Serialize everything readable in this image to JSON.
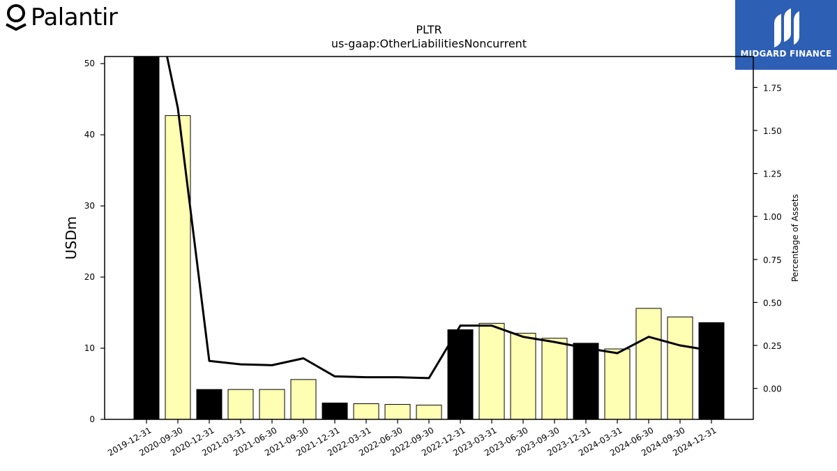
{
  "brand": {
    "left_logo_text": "Palantir",
    "right_logo_text": "MIDGARD FINANCE",
    "right_logo_bg": "#2d5fb4"
  },
  "chart_data": {
    "type": "bar",
    "title": "PLTR",
    "subtitle": "us-gaap:OtherLiabilitiesNoncurrent",
    "ylabel": "USDm",
    "y2label": "Percentage of Assets",
    "categories": [
      "2019-12-31",
      "2020-09-30",
      "2020-12-31",
      "2021-03-31",
      "2021-06-30",
      "2021-09-30",
      "2021-12-31",
      "2022-03-31",
      "2022-06-30",
      "2022-09-30",
      "2022-12-31",
      "2023-03-31",
      "2023-06-30",
      "2023-09-30",
      "2023-12-31",
      "2024-03-31",
      "2024-06-30",
      "2024-09-30",
      "2024-12-31"
    ],
    "series": [
      {
        "kind": "bar",
        "values": [
          51,
          42.7,
          4.2,
          4.2,
          4.2,
          5.6,
          2.3,
          2.2,
          2.1,
          2.0,
          12.6,
          13.5,
          12.1,
          11.4,
          10.7,
          9.9,
          15.6,
          14.4,
          13.6
        ],
        "fiscal_year_end": [
          true,
          false,
          true,
          false,
          false,
          false,
          true,
          false,
          false,
          false,
          true,
          false,
          false,
          false,
          true,
          false,
          false,
          false,
          true
        ]
      },
      {
        "kind": "line",
        "axis": "right",
        "values": [
          2.5,
          1.63,
          0.16,
          0.14,
          0.135,
          0.175,
          0.07,
          0.065,
          0.065,
          0.06,
          0.365,
          0.365,
          0.3,
          0.27,
          0.235,
          0.205,
          0.3,
          0.25,
          0.22
        ]
      }
    ],
    "ylim": [
      0,
      51
    ],
    "yticks": [
      0,
      10,
      20,
      30,
      40,
      50
    ],
    "y2lim": [
      -0.18,
      1.93
    ],
    "y2ticks": [
      "0.00",
      "0.25",
      "0.50",
      "0.75",
      "1.00",
      "1.25",
      "1.50",
      "1.75"
    ],
    "colors": {
      "fiscal_year_end_bar": "#000000",
      "quarter_bar": "#ffffb3",
      "line": "#000000"
    }
  }
}
